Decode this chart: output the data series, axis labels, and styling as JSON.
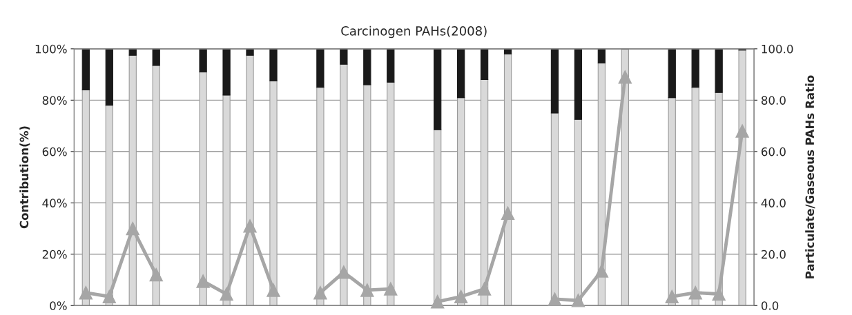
{
  "chart_data": {
    "type": "bar",
    "title": "Carcinogen PAHs(2008)",
    "ylabel": "Contribution(%)",
    "y2label": "Particulate/Gaseous PAHs Ratio",
    "categories": [
      null,
      null,
      null,
      null,
      null,
      null,
      null,
      null,
      null,
      null,
      null,
      null,
      null,
      null,
      null,
      null,
      null,
      null,
      null,
      null,
      null,
      null,
      null,
      null,
      null,
      null,
      null,
      null,
      null
    ],
    "stacked": true,
    "grid": "y",
    "legend": false,
    "ylim": [
      0,
      100
    ],
    "yticks": [
      {
        "value": 0,
        "label": "0%"
      },
      {
        "value": 20,
        "label": "20%"
      },
      {
        "value": 40,
        "label": "40%"
      },
      {
        "value": 60,
        "label": "60%"
      },
      {
        "value": 80,
        "label": "80%"
      },
      {
        "value": 100,
        "label": "100%"
      }
    ],
    "y2lim": [
      0,
      100
    ],
    "y2ticks": [
      {
        "value": 0,
        "label": "0.0"
      },
      {
        "value": 20,
        "label": "20.0"
      },
      {
        "value": 40,
        "label": "40.0"
      },
      {
        "value": 60,
        "label": "60.0"
      },
      {
        "value": 80,
        "label": "80.0"
      },
      {
        "value": 100,
        "label": "100.0"
      }
    ],
    "series": [
      {
        "color": "#d9d9d9",
        "values": [
          84,
          78,
          97.5,
          93.5,
          null,
          91,
          82,
          97.5,
          87.5,
          null,
          85,
          94,
          86,
          87,
          null,
          68.5,
          81,
          88,
          98,
          null,
          75,
          72.5,
          94.5,
          100,
          null,
          81,
          85,
          83,
          99.5
        ]
      },
      {
        "color": "#1a1a1a",
        "values": [
          16,
          22,
          2.5,
          6.5,
          null,
          9,
          18,
          2.5,
          12.5,
          null,
          15,
          6,
          14,
          13,
          null,
          31.5,
          19,
          12,
          2,
          null,
          25,
          27.5,
          5.5,
          0,
          null,
          19,
          15,
          17,
          0.5
        ]
      },
      {
        "type": "line",
        "axis": "y2",
        "color": "#a6a6a6",
        "marker": "triangle",
        "line_style": "solid",
        "values": [
          5,
          3.5,
          30,
          12,
          null,
          9.5,
          4.5,
          31,
          6,
          null,
          5,
          13,
          6,
          6.5,
          null,
          1.5,
          3.5,
          6.5,
          36,
          null,
          2.5,
          2,
          13.5,
          89,
          null,
          3.5,
          5,
          4.5,
          68
        ]
      }
    ]
  }
}
